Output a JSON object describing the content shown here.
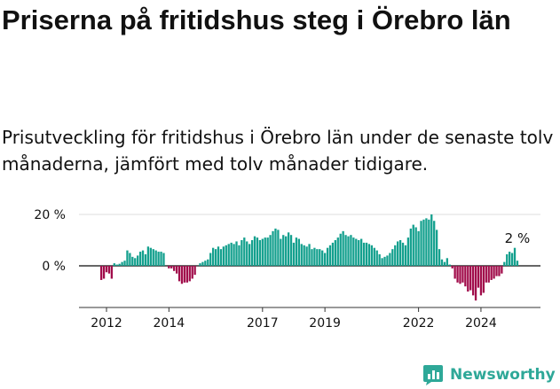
{
  "title": "Priserna på fritidshus steg i Örebro län",
  "subtitle": "Prisutveckling för fritidshus i Örebro län under de senaste tolv månaderna, jämfört med tolv månader tidigare.",
  "brand": {
    "name": "Newsworthy",
    "icon": "newsworthy-logo-icon"
  },
  "colors": {
    "positive": "#14a08e",
    "negative": "#a10d4b",
    "axis": "#333333",
    "grid": "#dddddd",
    "text": "#111111"
  },
  "chart_data": {
    "type": "bar",
    "unit": "%",
    "x_start": "2011-11",
    "frequency": "monthly",
    "x_ticks": [
      "2012",
      "2014",
      "2017",
      "2019",
      "2022",
      "2024"
    ],
    "y_ticks": [
      "0 %",
      "20 %"
    ],
    "ylim": [
      -15,
      22
    ],
    "grid": true,
    "last_value_label": "2 %",
    "values": [
      -5.5,
      -5.0,
      -2.5,
      -3.0,
      -5.0,
      1.0,
      0.5,
      0.8,
      1.5,
      2.0,
      6.0,
      5.0,
      3.5,
      3.0,
      4.0,
      5.5,
      6.0,
      4.5,
      7.5,
      7.0,
      6.5,
      6.0,
      5.5,
      5.5,
      5.0,
      0.0,
      -1.0,
      -1.0,
      -2.0,
      -3.0,
      -6.0,
      -7.0,
      -6.5,
      -6.5,
      -6.0,
      -5.0,
      -3.5,
      0.0,
      1.0,
      1.5,
      2.0,
      2.5,
      5.0,
      7.0,
      6.5,
      7.5,
      6.5,
      7.5,
      8.0,
      8.5,
      9.0,
      8.5,
      9.5,
      8.0,
      10.0,
      11.0,
      9.5,
      8.5,
      10.0,
      11.5,
      11.0,
      10.0,
      10.5,
      11.0,
      11.0,
      12.0,
      13.5,
      14.5,
      14.0,
      10.5,
      12.0,
      11.5,
      13.0,
      12.0,
      9.0,
      11.0,
      10.5,
      8.5,
      8.0,
      7.5,
      8.5,
      6.5,
      7.0,
      6.5,
      6.5,
      6.0,
      5.0,
      7.0,
      8.0,
      9.0,
      10.0,
      11.0,
      12.5,
      13.5,
      12.0,
      11.5,
      12.0,
      11.0,
      10.5,
      10.0,
      10.5,
      9.0,
      9.0,
      8.5,
      8.0,
      7.0,
      6.0,
      4.5,
      3.0,
      3.5,
      4.0,
      5.0,
      6.5,
      8.0,
      9.5,
      10.0,
      9.0,
      8.0,
      11.0,
      14.5,
      16.0,
      15.0,
      13.5,
      17.5,
      18.0,
      18.5,
      18.0,
      20.0,
      17.5,
      14.0,
      6.5,
      2.5,
      1.5,
      3.0,
      0.5,
      -1.0,
      -5.0,
      -6.5,
      -7.0,
      -6.5,
      -8.0,
      -10.0,
      -9.5,
      -11.5,
      -13.5,
      -8.5,
      -11.5,
      -10.5,
      -6.5,
      -6.5,
      -5.5,
      -5.0,
      -4.0,
      -4.0,
      -3.0,
      1.5,
      4.5,
      5.5,
      5.0,
      7.0,
      2.0
    ]
  }
}
